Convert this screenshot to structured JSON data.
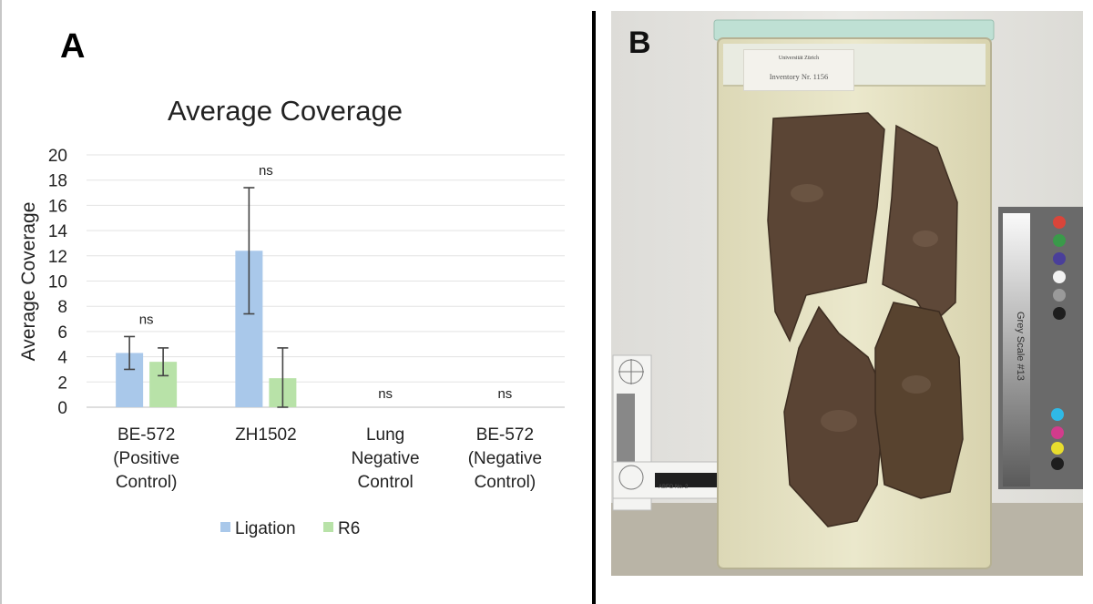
{
  "panels": {
    "a_letter": "A",
    "b_letter": "B"
  },
  "chart_data": {
    "type": "bar",
    "title": "Average Coverage",
    "xlabel": "",
    "ylabel": "Average Coverage",
    "ylim": [
      0,
      20
    ],
    "yticks": [
      0,
      2,
      4,
      6,
      8,
      10,
      12,
      14,
      16,
      18,
      20
    ],
    "grid": true,
    "legend_position": "bottom",
    "categories": [
      [
        "BE-572",
        "(Positive",
        "Control)"
      ],
      [
        "ZH1502"
      ],
      [
        "Lung",
        "Negative",
        "Control"
      ],
      [
        "BE-572",
        "(Negative",
        "Control)"
      ]
    ],
    "series": [
      {
        "name": "Ligation",
        "color": "#a9c8ea",
        "values": [
          4.3,
          12.4,
          0,
          0
        ],
        "err": [
          1.3,
          5.0,
          0,
          0
        ]
      },
      {
        "name": "R6",
        "color": "#b8e2a8",
        "values": [
          3.6,
          2.3,
          0,
          0
        ],
        "err": [
          1.1,
          2.4,
          0,
          0
        ]
      }
    ],
    "annotations": [
      "ns",
      "ns",
      "ns",
      "ns"
    ]
  },
  "photo": {
    "inventory_university": "Universität Zürich",
    "inventory_number": "Inventory Nr. 1156",
    "scale_label": "Grey Scale #13",
    "ruler_label": "ABFO No. 2",
    "colors": {
      "wall": "#e9e8e4",
      "floor": "#b8b3a5",
      "jar_fluid": "#e6e3c6",
      "jar_lid": "#bfe0d4",
      "tissue": "#5a4636",
      "scale_card": "#5f5f5f"
    }
  }
}
